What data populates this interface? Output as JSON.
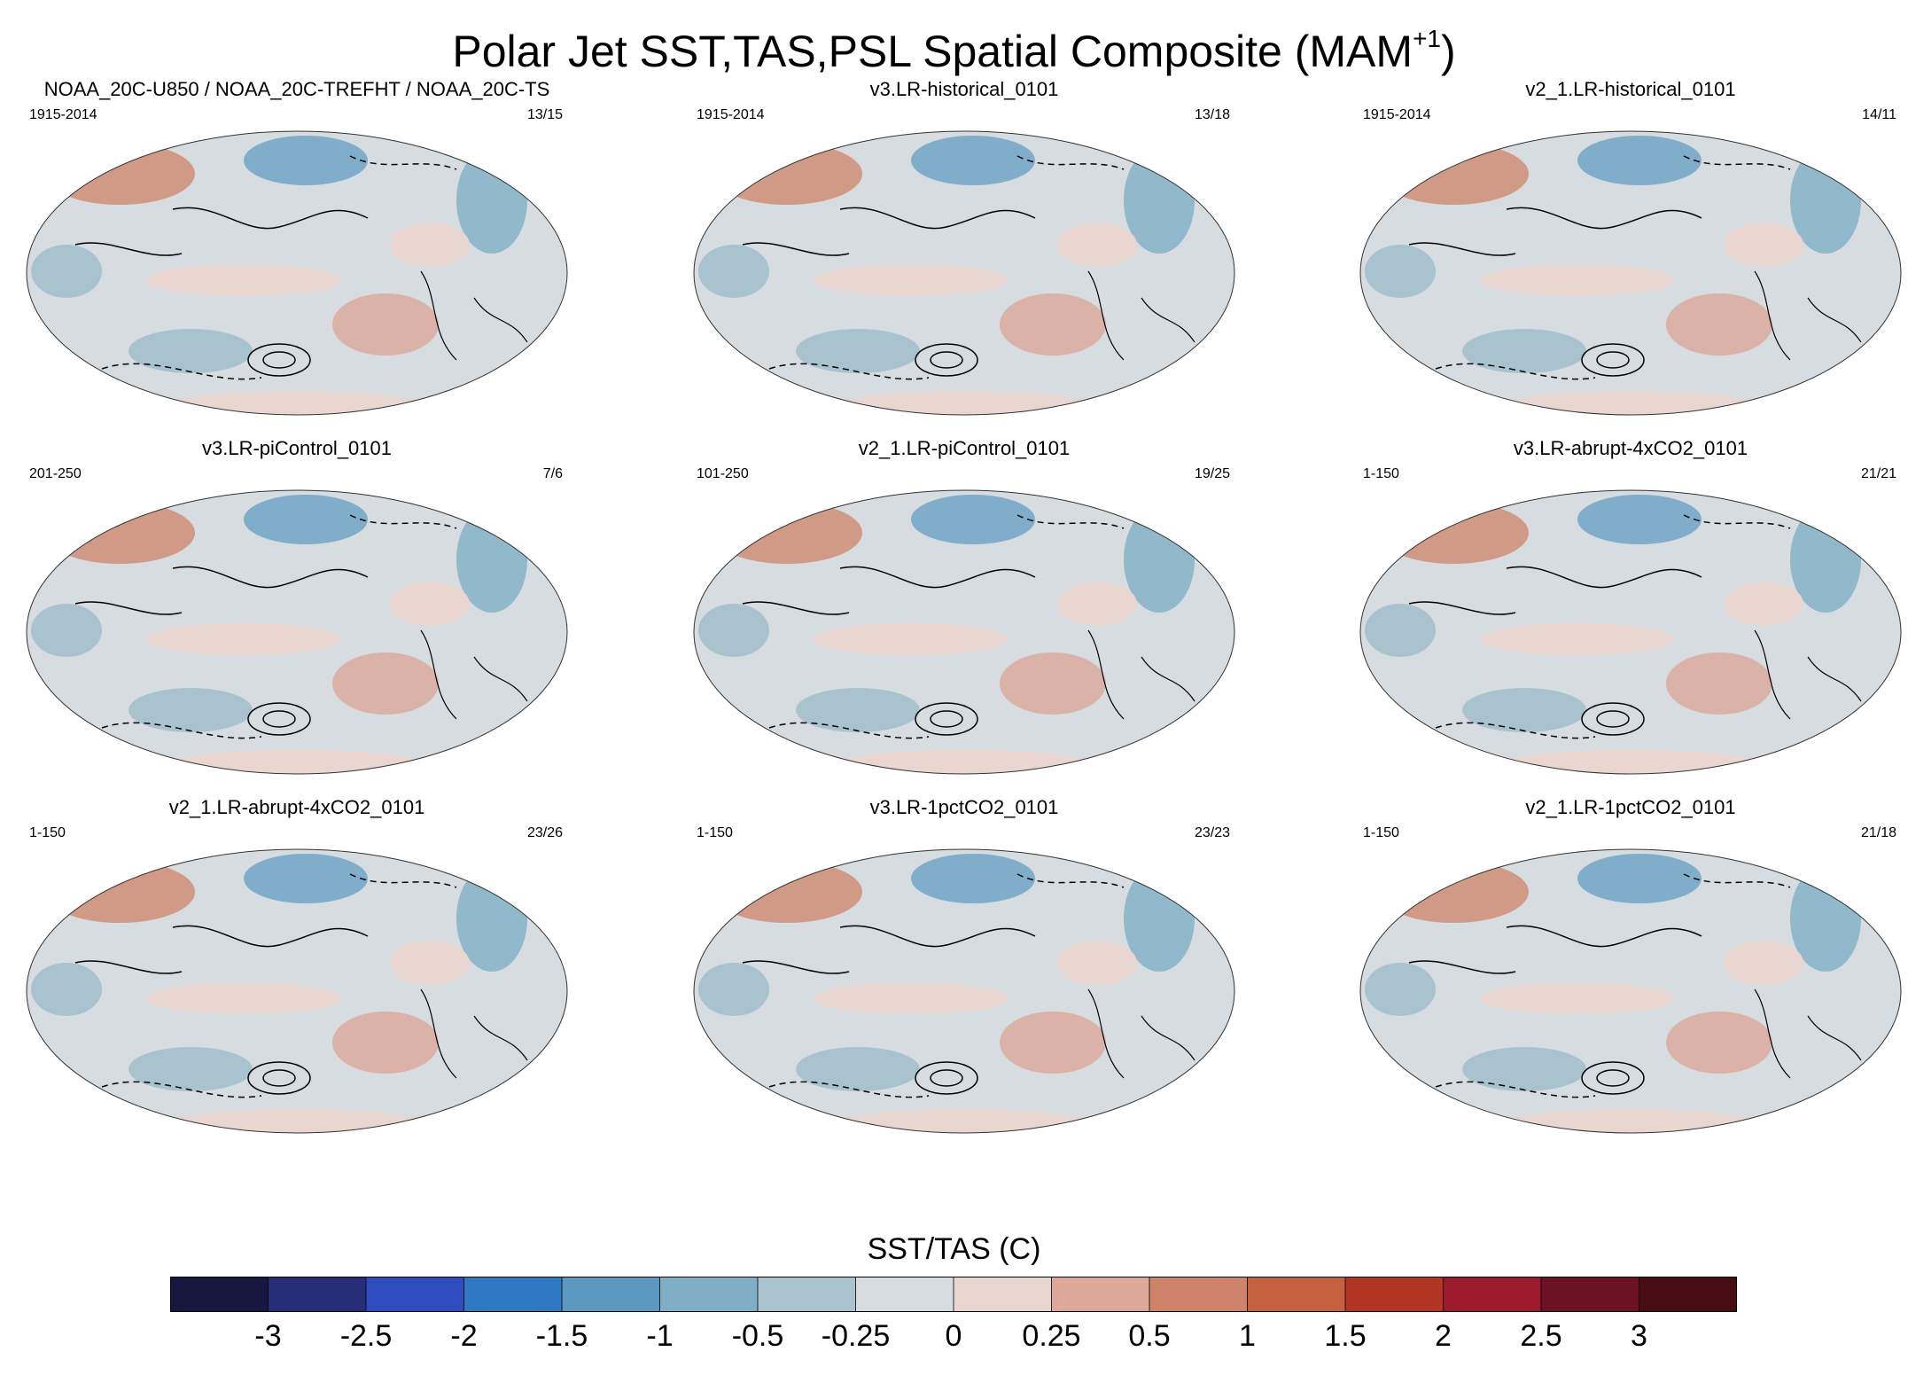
{
  "title_main": "Polar Jet SST,TAS,PSL Spatial Composite (MAM",
  "title_sup": "+1",
  "title_close": ")",
  "panels": [
    {
      "title": "NOAA_20C-U850 / NOAA_20C-TREFHT / NOAA_20C-TS",
      "years": "1915-2014",
      "count": "13/15"
    },
    {
      "title": "v3.LR-historical_0101",
      "years": "1915-2014",
      "count": "13/18"
    },
    {
      "title": "v2_1.LR-historical_0101",
      "years": "1915-2014",
      "count": "14/11"
    },
    {
      "title": "v3.LR-piControl_0101",
      "years": "201-250",
      "count": "7/6"
    },
    {
      "title": "v2_1.LR-piControl_0101",
      "years": "101-250",
      "count": "19/25"
    },
    {
      "title": "v3.LR-abrupt-4xCO2_0101",
      "years": "1-150",
      "count": "21/21"
    },
    {
      "title": "v2_1.LR-abrupt-4xCO2_0101",
      "years": "1-150",
      "count": "23/26"
    },
    {
      "title": "v3.LR-1pctCO2_0101",
      "years": "1-150",
      "count": "23/23"
    },
    {
      "title": "v2_1.LR-1pctCO2_0101",
      "years": "1-150",
      "count": "21/18"
    }
  ],
  "chart_data": {
    "type": "heatmap",
    "title": "Polar Jet SST,TAS,PSL Spatial Composite (MAM+1)",
    "projection": "Robinson (Pacific-centred)",
    "fields": [
      "SST/TAS anomaly (shaded)",
      "PSL anomaly (contours, dashed negative)"
    ],
    "colorbar": {
      "label": "SST/TAS (C)",
      "ticks": [
        "-3",
        "-2.5",
        "-2",
        "-1.5",
        "-1",
        "-0.5",
        "-0.25",
        "0",
        "0.25",
        "0.5",
        "1",
        "1.5",
        "2",
        "2.5",
        "3"
      ],
      "colors": [
        "#15173f",
        "#262e7a",
        "#2f4cc1",
        "#2f78c2",
        "#5a98c0",
        "#7fafc6",
        "#a9c3ce",
        "#d6dce0",
        "#ead6d1",
        "#dba899",
        "#cf8469",
        "#c4603e",
        "#b23524",
        "#9c1a2c",
        "#6d1224",
        "#480c14"
      ]
    }
  }
}
